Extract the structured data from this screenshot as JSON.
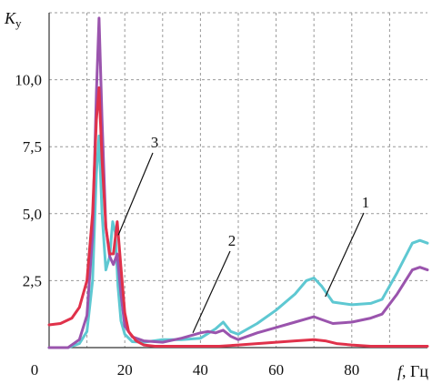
{
  "chart_data": {
    "type": "line",
    "title": "",
    "ylabel_main": "K",
    "ylabel_sub": "у",
    "xlabel_var": "f",
    "xlabel_unit": ", Гц",
    "xlim": [
      0,
      100
    ],
    "ylim": [
      0,
      12.5
    ],
    "xticks": [
      0,
      20,
      40,
      60,
      80
    ],
    "xtick_labels": [
      "0",
      "20",
      "40",
      "60",
      "80"
    ],
    "yticks": [
      2.5,
      5.0,
      7.5,
      10.0
    ],
    "ytick_labels": [
      "2,5",
      "5,0",
      "7,5",
      "10,0"
    ],
    "grid": true,
    "series": [
      {
        "name": "1",
        "color": "#5ec8d2",
        "x": [
          0,
          5,
          8,
          10,
          11.5,
          12.5,
          13.2,
          14,
          15,
          16,
          16.8,
          17.5,
          18.2,
          19,
          20,
          22,
          25,
          30,
          35,
          40,
          44,
          46,
          48,
          50,
          55,
          60,
          65,
          68,
          70,
          72,
          75,
          80,
          85,
          88,
          92,
          96,
          98,
          100
        ],
        "y": [
          0,
          0,
          0.15,
          0.6,
          2.5,
          6.5,
          7.9,
          5.0,
          2.9,
          3.4,
          4.7,
          4.3,
          2.3,
          1.0,
          0.5,
          0.22,
          0.2,
          0.3,
          0.3,
          0.35,
          0.7,
          0.95,
          0.6,
          0.5,
          0.9,
          1.4,
          2.0,
          2.5,
          2.6,
          2.3,
          1.7,
          1.6,
          1.65,
          1.8,
          2.8,
          3.9,
          4.0,
          3.9
        ]
      },
      {
        "name": "2",
        "color": "#9a54ad",
        "x": [
          0,
          5,
          8,
          10,
          11.5,
          12.5,
          13.2,
          14,
          15,
          16,
          17,
          18,
          19,
          20,
          22,
          25,
          30,
          35,
          40,
          42,
          44,
          45,
          46,
          48,
          50,
          55,
          60,
          65,
          70,
          72,
          75,
          80,
          85,
          88,
          92,
          96,
          98,
          100
        ],
        "y": [
          0,
          0,
          0.3,
          1.2,
          4.2,
          9.5,
          12.3,
          8.5,
          4.5,
          3.4,
          3.1,
          3.5,
          2.0,
          0.8,
          0.4,
          0.25,
          0.2,
          0.35,
          0.55,
          0.6,
          0.55,
          0.6,
          0.65,
          0.42,
          0.3,
          0.55,
          0.75,
          0.95,
          1.15,
          1.05,
          0.9,
          0.95,
          1.1,
          1.25,
          2.0,
          2.9,
          3.0,
          2.9
        ]
      },
      {
        "name": "3",
        "color": "#e0314a",
        "x": [
          0,
          3,
          6,
          8,
          10,
          11.5,
          12.5,
          13.2,
          14,
          15,
          16,
          17,
          18,
          19,
          20,
          21,
          23,
          25,
          28,
          35,
          40,
          45,
          50,
          55,
          60,
          65,
          70,
          73,
          76,
          80,
          85,
          90,
          95,
          100
        ],
        "y": [
          0.85,
          0.9,
          1.1,
          1.5,
          2.5,
          5.0,
          8.5,
          9.7,
          7.0,
          4.5,
          3.5,
          3.5,
          4.7,
          3.0,
          1.3,
          0.6,
          0.25,
          0.1,
          0.05,
          0.05,
          0.05,
          0.05,
          0.1,
          0.15,
          0.2,
          0.25,
          0.3,
          0.25,
          0.15,
          0.1,
          0.05,
          0.05,
          0.05,
          0.05
        ]
      }
    ],
    "annotations": [
      {
        "label": "1",
        "series": "1",
        "point_x": 73,
        "point_y": 1.9
      },
      {
        "label": "2",
        "series": "2",
        "point_x": 38,
        "point_y": 0.55
      },
      {
        "label": "3",
        "series": "3",
        "point_x": 18.3,
        "point_y": 4.2
      }
    ]
  }
}
